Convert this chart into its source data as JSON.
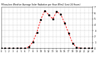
{
  "title": "Milwaukee Weather Average Solar Radiation per Hour W/m2 (Last 24 Hours)",
  "background_color": "#ffffff",
  "line_color": "#ff0000",
  "grid_color": "#aaaaaa",
  "ylim": [
    0,
    700
  ],
  "xlim": [
    0,
    23
  ],
  "ytick_values": [
    0,
    100,
    200,
    300,
    400,
    500,
    600,
    700
  ],
  "ytick_labels": [
    "0",
    "1",
    "2",
    "3",
    "4",
    "5",
    "6",
    "7"
  ],
  "xtick_positions": [
    0,
    1,
    2,
    3,
    4,
    5,
    6,
    7,
    8,
    9,
    10,
    11,
    12,
    13,
    14,
    15,
    16,
    17,
    18,
    19,
    20,
    21,
    22,
    23
  ],
  "hours": [
    0,
    1,
    2,
    3,
    4,
    5,
    6,
    7,
    8,
    9,
    10,
    11,
    12,
    13,
    14,
    15,
    16,
    17,
    18,
    19,
    20,
    21,
    22,
    23
  ],
  "values": [
    0,
    0,
    0,
    0,
    0,
    0,
    2,
    25,
    110,
    270,
    490,
    640,
    570,
    500,
    620,
    580,
    430,
    260,
    90,
    18,
    2,
    0,
    0,
    0
  ]
}
